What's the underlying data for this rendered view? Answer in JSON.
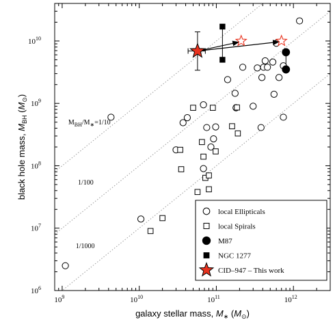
{
  "chart_data": {
    "type": "scatter",
    "title": "",
    "xlabel": "galaxy stellar mass, M∗ (M⊙)",
    "ylabel": "black hole mass, M_BH (M⊙)",
    "x_scale": "log",
    "y_scale": "log",
    "xlim": [
      800000000.0,
      3000000000000.0
    ],
    "ylim": [
      1000000.0,
      40000000000.0
    ],
    "x_ticks": [
      {
        "value": 1000000000.0,
        "label": "10",
        "exp": "9"
      },
      {
        "value": 10000000000.0,
        "label": "10",
        "exp": "10"
      },
      {
        "value": 100000000000.0,
        "label": "10",
        "exp": "11"
      },
      {
        "value": 1000000000000.0,
        "label": "10",
        "exp": "12"
      }
    ],
    "y_ticks": [
      {
        "value": 1000000.0,
        "label": "10",
        "exp": "6"
      },
      {
        "value": 10000000.0,
        "label": "10",
        "exp": "7"
      },
      {
        "value": 100000000.0,
        "label": "10",
        "exp": "8"
      },
      {
        "value": 1000000000.0,
        "label": "10",
        "exp": "9"
      },
      {
        "value": 10000000000.0,
        "label": "10",
        "exp": "10"
      }
    ],
    "ratio_lines": [
      {
        "ratio": 0.1,
        "label": "M",
        "sub1": "BH",
        "mid": "/M",
        "sub2": "∗",
        "tail": "=1/10",
        "label_x": 1200000000.0,
        "label_y": 460000000.0
      },
      {
        "ratio": 0.01,
        "label": "1/100",
        "label_x": 1600000000.0,
        "label_y": 50000000.0
      },
      {
        "ratio": 0.001,
        "label": "1/1000",
        "label_x": 1500000000.0,
        "label_y": 4800000.0
      }
    ],
    "series": [
      {
        "name": "local Ellipticals",
        "marker": "open-circle",
        "points": [
          [
            1100000000.0,
            2500000.0
          ],
          [
            4300000000.0,
            600000000.0
          ],
          [
            10500000000.0,
            14000000.0
          ],
          [
            30000000000.0,
            180000000.0
          ],
          [
            37000000000.0,
            490000000.0
          ],
          [
            42000000000.0,
            590000000.0
          ],
          [
            68000000000.0,
            950000000.0
          ],
          [
            75000000000.0,
            410000000.0
          ],
          [
            85000000000.0,
            200000000.0
          ],
          [
            92000000000.0,
            270000000.0
          ],
          [
            98000000000.0,
            420000000.0
          ],
          [
            68000000000.0,
            90000000.0
          ],
          [
            140000000000.0,
            2400000000.0
          ],
          [
            180000000000.0,
            850000000.0
          ],
          [
            175000000000.0,
            1450000000.0
          ],
          [
            220000000000.0,
            3800000000.0
          ],
          [
            300000000000.0,
            900000000.0
          ],
          [
            340000000000.0,
            3700000000.0
          ],
          [
            380000000000.0,
            410000000.0
          ],
          [
            390000000000.0,
            2600000000.0
          ],
          [
            410000000000.0,
            3800000000.0
          ],
          [
            430000000000.0,
            4800000000.0
          ],
          [
            460000000000.0,
            3800000000.0
          ],
          [
            540000000000.0,
            4600000000.0
          ],
          [
            560000000000.0,
            1400000000.0
          ],
          [
            600000000000.0,
            9200000000.0
          ],
          [
            650000000000.0,
            2600000000.0
          ],
          [
            740000000000.0,
            4000000000.0
          ],
          [
            740000000000.0,
            600000000.0
          ],
          [
            1200000000000.0,
            21000000000.0
          ]
        ]
      },
      {
        "name": "local Spirals",
        "marker": "open-square",
        "points": [
          [
            14000000000.0,
            9000000.0
          ],
          [
            20000000000.0,
            14500000.0
          ],
          [
            34000000000.0,
            180000000.0
          ],
          [
            35000000000.0,
            88000000.0
          ],
          [
            50000000000.0,
            850000000.0
          ],
          [
            57000000000.0,
            38000000.0
          ],
          [
            65000000000.0,
            240000000.0
          ],
          [
            68000000000.0,
            140000000.0
          ],
          [
            72000000000.0,
            64000000.0
          ],
          [
            80000000000.0,
            42000000.0
          ],
          [
            80000000000.0,
            70000000.0
          ],
          [
            90000000000.0,
            850000000.0
          ],
          [
            98000000000.0,
            170000000.0
          ],
          [
            160000000000.0,
            430000000.0
          ],
          [
            190000000000.0,
            330000000.0
          ],
          [
            185000000000.0,
            860000000.0
          ]
        ]
      },
      {
        "name": "M87",
        "marker": "filled-circle",
        "points": [
          [
            800000000000.0,
            6600000000.0
          ],
          [
            800000000000.0,
            3500000000.0
          ]
        ]
      },
      {
        "name": "NGC 1277",
        "marker": "filled-square",
        "points": [
          [
            120000000000.0,
            17000000000.0
          ],
          [
            120000000000.0,
            5000000000.0
          ]
        ]
      },
      {
        "name": "CID–947 – This work",
        "marker": "filled-star",
        "points": [
          [
            57000000000.0,
            6900000000.0
          ]
        ]
      },
      {
        "name": "",
        "marker": "open-star",
        "points": [
          [
            210000000000.0,
            10000000000.0
          ],
          [
            700000000000.0,
            10000000000.0
          ]
        ]
      }
    ],
    "vertical_links": [
      {
        "x": 800000000000.0,
        "y1": 3500000000.0,
        "y2": 6600000000.0
      },
      {
        "x": 120000000000.0,
        "y1": 5000000000.0,
        "y2": 17000000000.0
      }
    ],
    "error_bars": [
      {
        "x": 57000000000.0,
        "y": 6900000000.0,
        "x_low": 43000000000.0,
        "x_high": 72000000000.0,
        "y_low": 3400000000.0,
        "y_high": 14000000000.0
      }
    ],
    "arrows": [
      {
        "from": [
          57000000000.0,
          6900000000.0
        ],
        "to": [
          195000000000.0,
          9600000000.0
        ]
      },
      {
        "from": [
          57000000000.0,
          6900000000.0
        ],
        "to": [
          650000000000.0,
          9700000000.0
        ]
      }
    ],
    "legend": {
      "placement": "bottom-right",
      "entries": [
        {
          "label": "local Ellipticals",
          "marker": "open-circle"
        },
        {
          "label": "local Spirals",
          "marker": "open-square"
        },
        {
          "label": "M87",
          "marker": "filled-circle"
        },
        {
          "label": "NGC 1277",
          "marker": "filled-square"
        },
        {
          "label": "CID–947 – This work",
          "marker": "filled-star"
        }
      ]
    },
    "colors": {
      "star_fill": "#e8321e",
      "star_edge": "#000000",
      "open_star_edge": "#e8321e",
      "ratio_line": "#9a9a9a"
    }
  }
}
